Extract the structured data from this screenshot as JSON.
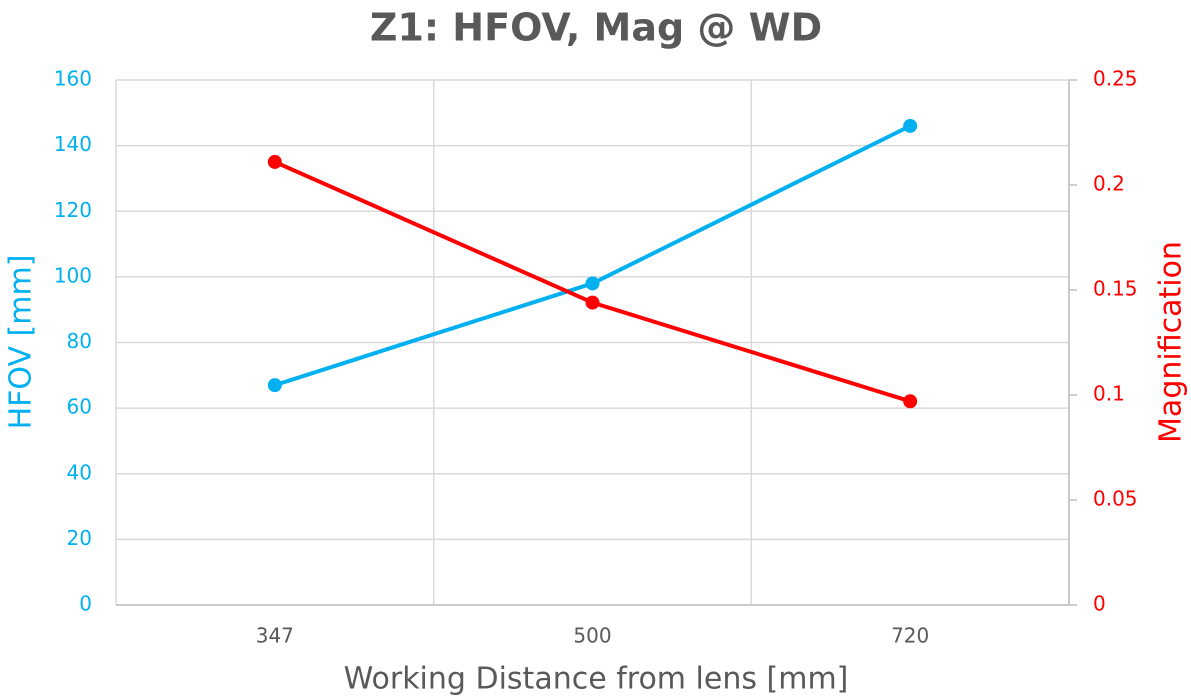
{
  "chart_data": {
    "type": "line",
    "title": "Z1: HFOV, Mag @ WD",
    "x_label": "Working Distance from lens [mm]",
    "y_label": "HFOV [mm]",
    "y2_label": "Magnification",
    "categories": [
      "347",
      "500",
      "720"
    ],
    "series": [
      {
        "name": "HFOV [mm]",
        "color": "#00b0f0",
        "values": [
          67,
          98,
          146
        ]
      },
      {
        "name": "Magnification",
        "color": "#ff0000",
        "axis": "y2",
        "values": [
          0.211,
          0.144,
          0.097
        ]
      }
    ],
    "ylim": [
      0,
      160
    ],
    "yticks": [
      0,
      20,
      40,
      60,
      80,
      100,
      120,
      140,
      160
    ],
    "y2lim": [
      0,
      0.25
    ],
    "y2ticks": [
      0,
      0.05,
      0.1,
      0.15,
      0.2,
      0.25
    ],
    "grid": true
  }
}
